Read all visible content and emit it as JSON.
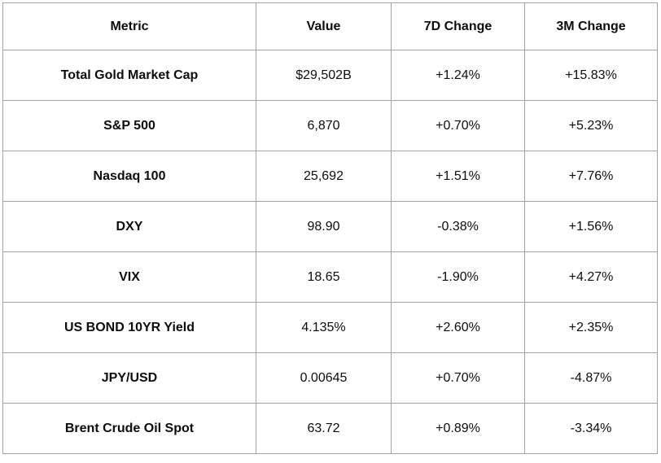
{
  "chart_data": {
    "type": "table",
    "title": "",
    "columns": [
      "Metric",
      "Value",
      "7D Change",
      "3M Change"
    ],
    "rows": [
      [
        "Total Gold Market Cap",
        "$29,502B",
        "+1.24%",
        "+15.83%"
      ],
      [
        "S&P 500",
        "6,870",
        "+0.70%",
        "+5.23%"
      ],
      [
        "Nasdaq 100",
        "25,692",
        "+1.51%",
        "+7.76%"
      ],
      [
        "DXY",
        "98.90",
        "-0.38%",
        "+1.56%"
      ],
      [
        "VIX",
        "18.65",
        "-1.90%",
        "+4.27%"
      ],
      [
        "US BOND 10YR Yield",
        "4.135%",
        "+2.60%",
        "+2.35%"
      ],
      [
        "JPY/USD",
        "0.00645",
        "+0.70%",
        "-4.87%"
      ],
      [
        "Brent Crude Oil Spot",
        "63.72",
        "+0.89%",
        "-3.34%"
      ]
    ],
    "layout": {
      "grid": true,
      "header_bold": true,
      "metric_column_bold": true,
      "text_align": "center"
    }
  },
  "colors": {
    "border": "#a2a2a2",
    "text": "#0d0d0d",
    "background": "#ffffff"
  }
}
